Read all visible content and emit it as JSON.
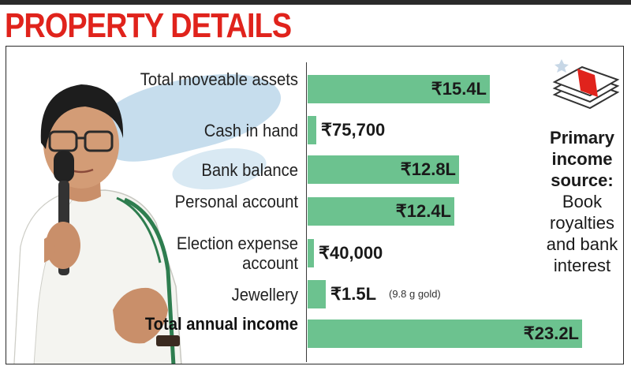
{
  "headline": "PROPERTY DETAILS",
  "primary_income": {
    "heading": "Primary income source:",
    "text": "Book royalties and bank interest"
  },
  "colors": {
    "headline": "#e0231c",
    "bar": "#6cc28f",
    "brush": "#b8d4e8"
  },
  "chart_data": {
    "type": "bar",
    "orientation": "horizontal",
    "categories": [
      "Total moveable assets",
      "Cash in hand",
      "Bank balance",
      "Personal account",
      "Election expense account",
      "Jewellery",
      "Total annual income"
    ],
    "values_inr": [
      1540000,
      75700,
      1280000,
      1240000,
      40000,
      150000,
      2320000
    ],
    "value_labels": [
      "₹15.4L",
      "₹75,700",
      "₹12.8L",
      "₹12.4L",
      "₹40,000",
      "₹1.5L",
      "₹23.2L"
    ],
    "notes": [
      "",
      "",
      "",
      "",
      "",
      "(9.8 g gold)",
      ""
    ],
    "bold": [
      false,
      false,
      false,
      false,
      false,
      false,
      true
    ],
    "icons": [
      "money-stack-icon",
      "portrait-photo"
    ]
  }
}
